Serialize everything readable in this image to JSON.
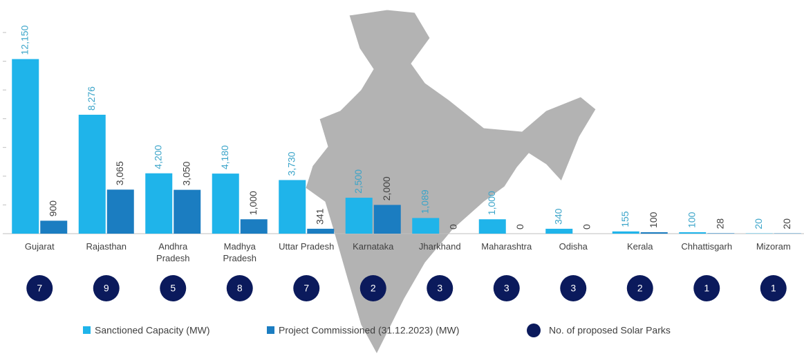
{
  "chart_data": {
    "type": "bar",
    "categories": [
      "Gujarat",
      "Rajasthan",
      "Andhra Pradesh",
      "Madhya Pradesh",
      "Uttar Pradesh",
      "Karnataka",
      "Jharkhand",
      "Maharashtra",
      "Odisha",
      "Kerala",
      "Chhattisgarh",
      "Mizoram"
    ],
    "series": [
      {
        "name": "Sanctioned Capacity (MW)",
        "color": "#1fb4ea",
        "label_color": "#3aa4c9",
        "values": [
          12150,
          8276,
          4200,
          4180,
          3730,
          2500,
          1089,
          1000,
          340,
          155,
          100,
          20
        ],
        "value_labels": [
          "12,150",
          "8,276",
          "4,200",
          "4,180",
          "3,730",
          "2,500",
          "1,089",
          "1,000",
          "340",
          "155",
          "100",
          "20"
        ]
      },
      {
        "name": "Project Commissioned (31.12.2023) (MW)",
        "color": "#1b7dc1",
        "label_color": "#404040",
        "values": [
          900,
          3065,
          3050,
          1000,
          341,
          2000,
          0,
          0,
          0,
          100,
          28,
          20
        ],
        "value_labels": [
          "900",
          "3,065",
          "3,050",
          "1,000",
          "341",
          "2,000",
          "0",
          "0",
          "0",
          "100",
          "28",
          "20"
        ]
      },
      {
        "name": "No. of proposed Solar Parks",
        "color": "#0b1a5c",
        "type": "circle",
        "values": [
          7,
          9,
          5,
          8,
          7,
          2,
          3,
          3,
          3,
          2,
          1,
          1
        ]
      }
    ],
    "ylim": [
      0,
      14000
    ],
    "yticks": [
      0,
      2000,
      4000,
      6000,
      8000,
      10000,
      12000,
      14000
    ],
    "grid": false
  }
}
